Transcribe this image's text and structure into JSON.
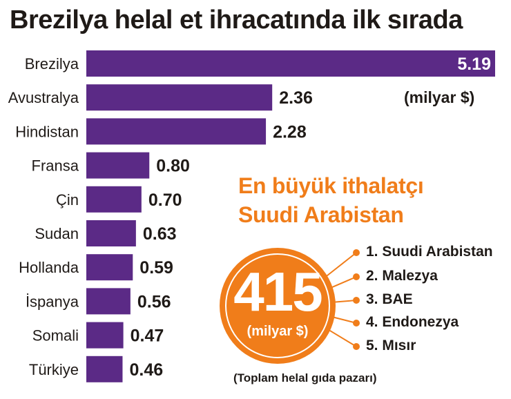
{
  "title": "Brezilya helal et ihracatında ilk sırada",
  "unit_label": "(milyar $)",
  "chart_data": {
    "type": "bar",
    "orientation": "horizontal",
    "categories": [
      "Brezilya",
      "Avustralya",
      "Hindistan",
      "Fransa",
      "Çin",
      "Sudan",
      "Hollanda",
      "İspanya",
      "Somali",
      "Türkiye"
    ],
    "values": [
      5.19,
      2.36,
      2.28,
      0.8,
      0.7,
      0.63,
      0.59,
      0.56,
      0.47,
      0.46
    ],
    "value_labels": [
      "5.19",
      "2.36",
      "2.28",
      "0.80",
      "0.70",
      "0.63",
      "0.59",
      "0.56",
      "0.47",
      "0.46"
    ],
    "unit": "(milyar $)",
    "bar_color": "#5b2a86",
    "grid": false
  },
  "importer": {
    "heading_line1": "En büyük ithalatçı",
    "heading_line2": "Suudi Arabistan",
    "total": "415",
    "total_unit": "(milyar $)",
    "list": [
      "1. Suudi Arabistan",
      "2.  Malezya",
      "3. BAE",
      "4. Endonezya",
      "5. Mısır"
    ],
    "market_label": "(Toplam helal gıda pazarı)",
    "accent_color": "#f07d1a"
  }
}
